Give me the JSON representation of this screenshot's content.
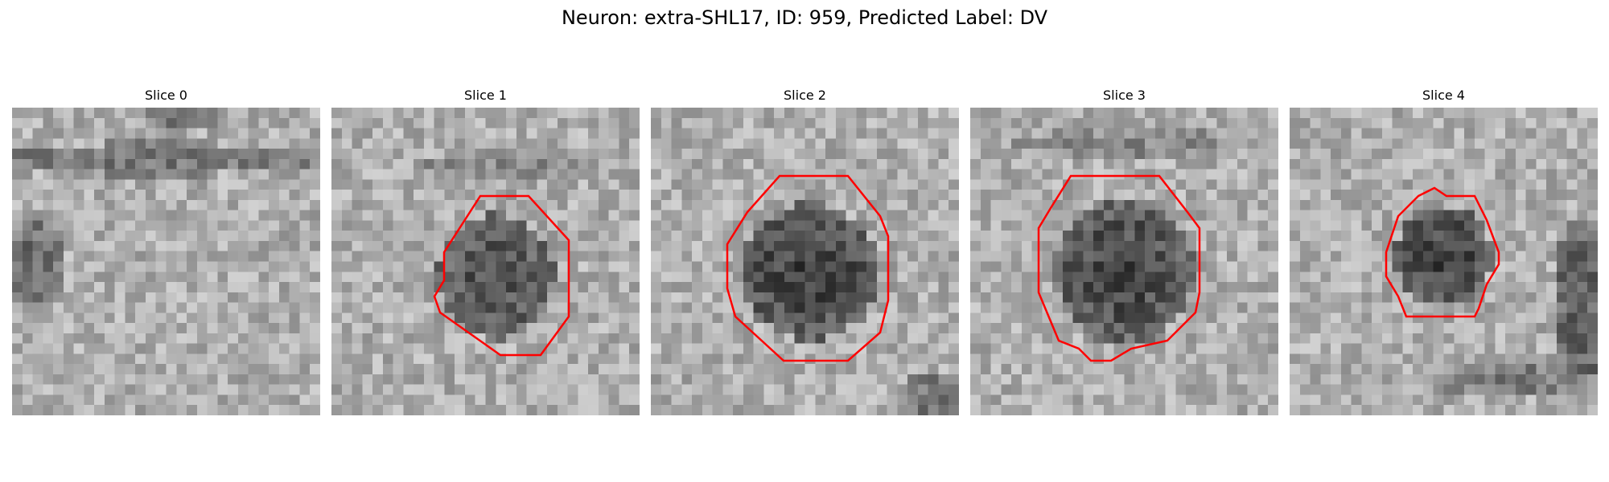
{
  "figure": {
    "title": "Neuron: extra-SHL17, ID: 959, Predicted Label: DV"
  },
  "contour_color": "#ff0000",
  "slices": [
    {
      "title": "Slice 0",
      "has_contour": false
    },
    {
      "title": "Slice 1",
      "has_contour": true
    },
    {
      "title": "Slice 2",
      "has_contour": true
    },
    {
      "title": "Slice 3",
      "has_contour": true
    },
    {
      "title": "Slice 4",
      "has_contour": true
    }
  ]
}
